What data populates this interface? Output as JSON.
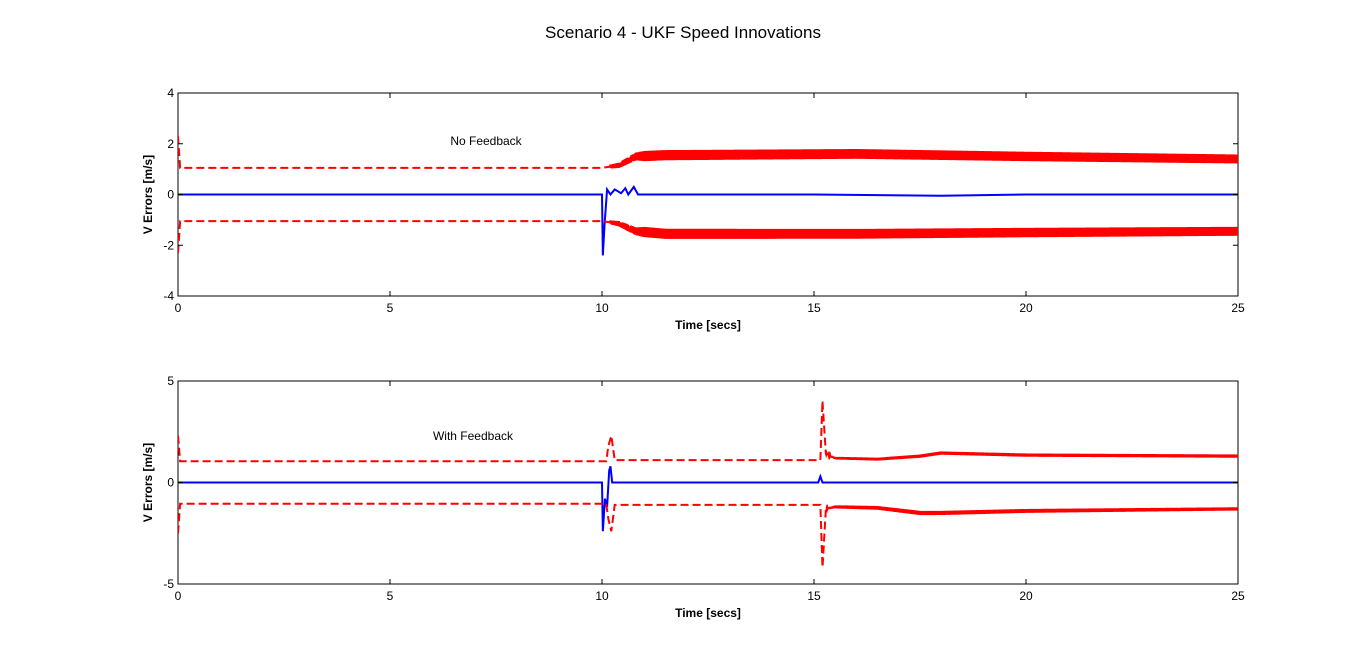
{
  "figure": {
    "title": "Scenario 4 - UKF Speed Innovations"
  },
  "chart_data": [
    {
      "type": "line",
      "annotation": "No Feedback",
      "xlabel": "Time [secs]",
      "ylabel": "V Errors [m/s]",
      "xlim": [
        0,
        25
      ],
      "ylim": [
        -4,
        4
      ],
      "xticks": [
        0,
        5,
        10,
        15,
        20,
        25
      ],
      "yticks": [
        -4,
        -2,
        0,
        2,
        4
      ],
      "grid": false,
      "series": [
        {
          "role": "innovation",
          "color": "#0000ff",
          "style": "solid",
          "points": [
            [
              0,
              0
            ],
            [
              10.0,
              0
            ],
            [
              10.02,
              -2.4
            ],
            [
              10.06,
              -1.2
            ],
            [
              10.12,
              0.2
            ],
            [
              10.2,
              0.0
            ],
            [
              10.3,
              0.2
            ],
            [
              10.45,
              0.05
            ],
            [
              10.55,
              0.25
            ],
            [
              10.62,
              0.0
            ],
            [
              10.75,
              0.3
            ],
            [
              10.85,
              0.0
            ],
            [
              12,
              0
            ],
            [
              15,
              0
            ],
            [
              18,
              -0.05
            ],
            [
              20,
              0
            ],
            [
              25,
              0
            ]
          ]
        },
        {
          "role": "upper-bound",
          "color": "#ff0000",
          "style": "dashed",
          "base": [
            [
              0,
              2.3
            ],
            [
              0.05,
              1.05
            ],
            [
              10.0,
              1.05
            ],
            [
              10.4,
              1.15
            ],
            [
              10.8,
              1.5
            ],
            [
              11.5,
              1.55
            ],
            [
              16,
              1.6
            ],
            [
              20,
              1.5
            ],
            [
              25,
              1.4
            ]
          ],
          "oscillation": [
            [
              10.2,
              0.15
            ],
            [
              10.8,
              0.3
            ],
            [
              11.0,
              0.4
            ],
            [
              25,
              0.35
            ]
          ]
        },
        {
          "role": "lower-bound",
          "color": "#ff0000",
          "style": "dashed",
          "base": [
            [
              0,
              -2.3
            ],
            [
              0.05,
              -1.05
            ],
            [
              10.0,
              -1.05
            ],
            [
              10.4,
              -1.15
            ],
            [
              10.8,
              -1.45
            ],
            [
              11.5,
              -1.55
            ],
            [
              16,
              -1.55
            ],
            [
              20,
              -1.5
            ],
            [
              25,
              -1.45
            ]
          ],
          "oscillation": [
            [
              10.2,
              0.15
            ],
            [
              10.8,
              0.3
            ],
            [
              11.0,
              0.4
            ],
            [
              25,
              0.35
            ]
          ]
        }
      ]
    },
    {
      "type": "line",
      "annotation": "With Feedback",
      "xlabel": "Time [secs]",
      "ylabel": "V Errors [m/s]",
      "xlim": [
        0,
        25
      ],
      "ylim": [
        -5,
        5
      ],
      "xticks": [
        0,
        5,
        10,
        15,
        20,
        25
      ],
      "yticks": [
        -5,
        0,
        5
      ],
      "grid": false,
      "series": [
        {
          "role": "innovation",
          "color": "#0000ff",
          "style": "solid",
          "points": [
            [
              0,
              0
            ],
            [
              10.0,
              0
            ],
            [
              10.02,
              -2.4
            ],
            [
              10.07,
              -0.8
            ],
            [
              10.12,
              -1.2
            ],
            [
              10.17,
              0.6
            ],
            [
              10.2,
              0.8
            ],
            [
              10.24,
              0.0
            ],
            [
              12,
              0
            ],
            [
              15.1,
              0
            ],
            [
              15.15,
              0.3
            ],
            [
              15.2,
              0
            ],
            [
              20,
              0
            ],
            [
              25,
              0
            ]
          ]
        },
        {
          "role": "upper-bound",
          "color": "#ff0000",
          "style": "dashed",
          "base": [
            [
              0,
              2.3
            ],
            [
              0.05,
              1.05
            ],
            [
              10.1,
              1.05
            ],
            [
              10.15,
              1.8
            ],
            [
              10.22,
              2.3
            ],
            [
              10.3,
              1.1
            ],
            [
              15.15,
              1.1
            ],
            [
              15.2,
              4.0
            ],
            [
              15.28,
              1.4
            ],
            [
              15.5,
              1.2
            ],
            [
              16.5,
              1.15
            ],
            [
              17.5,
              1.3
            ],
            [
              18,
              1.45
            ],
            [
              20,
              1.35
            ],
            [
              25,
              1.3
            ]
          ],
          "oscillation": [
            [
              15.2,
              0.05
            ],
            [
              15.6,
              0.12
            ],
            [
              17.5,
              0.15
            ],
            [
              25,
              0.15
            ]
          ]
        },
        {
          "role": "lower-bound",
          "color": "#ff0000",
          "style": "dashed",
          "base": [
            [
              0,
              -2.5
            ],
            [
              0.05,
              -1.05
            ],
            [
              10.1,
              -1.05
            ],
            [
              10.15,
              -1.8
            ],
            [
              10.22,
              -2.4
            ],
            [
              10.3,
              -1.1
            ],
            [
              15.15,
              -1.1
            ],
            [
              15.2,
              -4.2
            ],
            [
              15.28,
              -1.3
            ],
            [
              15.5,
              -1.2
            ],
            [
              16.5,
              -1.25
            ],
            [
              17.5,
              -1.5
            ],
            [
              18,
              -1.5
            ],
            [
              20,
              -1.4
            ],
            [
              25,
              -1.3
            ]
          ],
          "oscillation": [
            [
              15.2,
              0.05
            ],
            [
              15.6,
              0.15
            ],
            [
              17.5,
              0.2
            ],
            [
              25,
              0.15
            ]
          ]
        }
      ]
    }
  ]
}
